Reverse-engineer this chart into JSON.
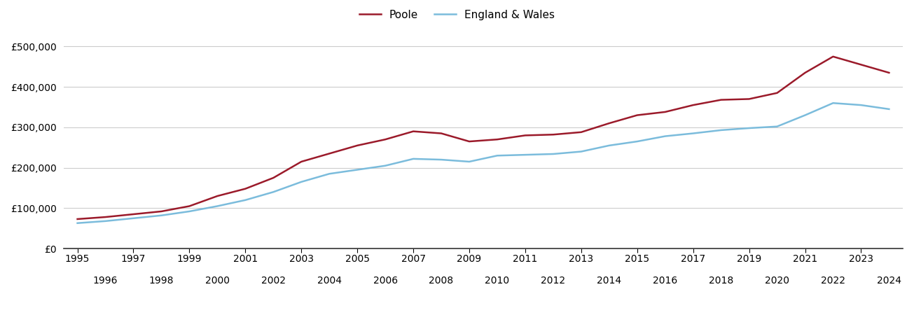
{
  "years": [
    1995,
    1996,
    1997,
    1998,
    1999,
    2000,
    2001,
    2002,
    2003,
    2004,
    2005,
    2006,
    2007,
    2008,
    2009,
    2010,
    2011,
    2012,
    2013,
    2014,
    2015,
    2016,
    2017,
    2018,
    2019,
    2020,
    2021,
    2022,
    2023,
    2024
  ],
  "poole": [
    73000,
    78000,
    85000,
    92000,
    105000,
    130000,
    148000,
    175000,
    215000,
    235000,
    255000,
    270000,
    290000,
    285000,
    265000,
    270000,
    280000,
    282000,
    288000,
    310000,
    330000,
    338000,
    355000,
    368000,
    370000,
    385000,
    435000,
    475000,
    455000,
    435000
  ],
  "england_wales": [
    63000,
    68000,
    75000,
    82000,
    92000,
    105000,
    120000,
    140000,
    165000,
    185000,
    195000,
    205000,
    222000,
    220000,
    215000,
    230000,
    232000,
    234000,
    240000,
    255000,
    265000,
    278000,
    285000,
    293000,
    298000,
    302000,
    330000,
    360000,
    355000,
    345000
  ],
  "poole_color": "#9b1a2a",
  "ew_color": "#7bbcdc",
  "poole_label": "Poole",
  "ew_label": "England & Wales",
  "ylim": [
    0,
    550000
  ],
  "yticks": [
    0,
    100000,
    200000,
    300000,
    400000,
    500000
  ],
  "ytick_labels": [
    "£0",
    "£100,000",
    "£200,000",
    "£300,000",
    "£400,000",
    "£500,000"
  ],
  "grid_color": "#cccccc",
  "background_color": "#ffffff",
  "line_width": 1.8,
  "legend_fontsize": 11,
  "tick_fontsize": 10
}
